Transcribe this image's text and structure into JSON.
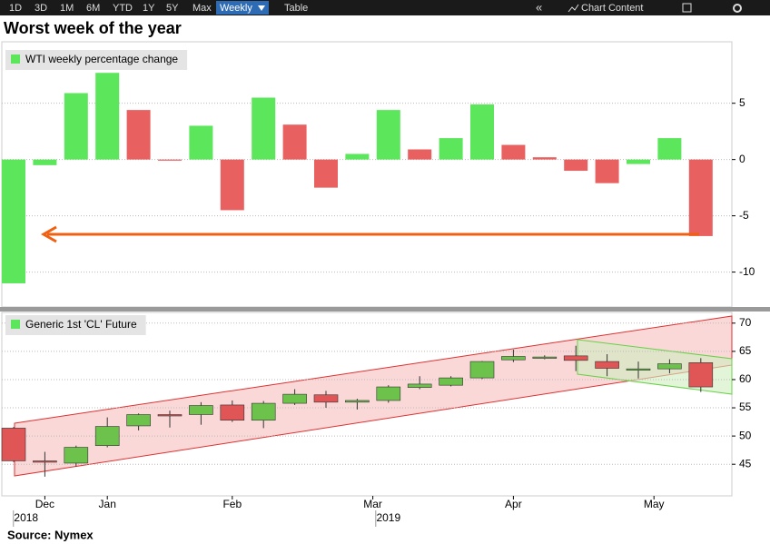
{
  "toolbar": {
    "ranges": [
      "1D",
      "3D",
      "1M",
      "6M",
      "YTD",
      "1Y",
      "5Y",
      "Max"
    ],
    "interval": "Weekly",
    "table": "Table",
    "chart_content": "Chart Content"
  },
  "source": "Source:  Nymex",
  "chart_data": [
    {
      "type": "bar",
      "title": "Worst week of the year",
      "series": [
        {
          "name": "WTI weekly percentage change",
          "color": "#5ce65c",
          "values": [
            -11.0,
            -0.5,
            5.9,
            7.7,
            4.4,
            -0.1,
            3.0,
            -4.5,
            5.5,
            3.1,
            -2.5,
            0.5,
            4.4,
            0.9,
            1.9,
            4.9,
            1.3,
            0.2,
            -1.0,
            -2.1,
            -0.4,
            1.9,
            -6.8
          ],
          "colors": [
            "#5ce65c",
            "#5ce65c",
            "#5ce65c",
            "#5ce65c",
            "#e86060",
            "#e86060",
            "#5ce65c",
            "#e86060",
            "#5ce65c",
            "#e86060",
            "#e86060",
            "#5ce65c",
            "#5ce65c",
            "#e86060",
            "#5ce65c",
            "#5ce65c",
            "#e86060",
            "#e86060",
            "#e86060",
            "#e86060",
            "#5ce65c",
            "#5ce65c",
            "#e86060"
          ]
        }
      ],
      "ylim": [
        -13.1,
        10.3
      ],
      "yticks": [
        -10,
        -5,
        0,
        5
      ],
      "grid": true
    },
    {
      "type": "candlestick",
      "series": [
        {
          "name": "Generic 1st 'CL' Future",
          "color": "#5ce65c",
          "up_color": "#6cc24a",
          "down_color": "#e05555",
          "open": [
            51.4,
            45.6,
            45.2,
            48.3,
            51.8,
            53.8,
            53.8,
            55.5,
            52.8,
            55.8,
            57.3,
            56.0,
            56.3,
            58.6,
            59.0,
            60.3,
            63.5,
            63.8,
            64.2,
            63.2,
            61.7,
            61.9,
            63.0
          ],
          "high": [
            51.6,
            47.2,
            48.3,
            53.3,
            54.0,
            54.5,
            56.0,
            56.3,
            56.2,
            58.3,
            58.0,
            56.6,
            59.0,
            60.6,
            60.6,
            63.3,
            65.3,
            64.3,
            66.0,
            64.5,
            63.2,
            63.6,
            63.8
          ],
          "low": [
            45.4,
            42.8,
            44.6,
            48.0,
            51.0,
            51.5,
            52.0,
            52.5,
            51.4,
            55.5,
            55.0,
            54.7,
            55.9,
            58.3,
            58.8,
            60.1,
            63.1,
            63.6,
            61.5,
            60.6,
            60.2,
            61.1,
            57.8
          ],
          "close": [
            45.6,
            45.5,
            48.0,
            51.7,
            53.8,
            53.7,
            55.4,
            52.8,
            55.8,
            57.4,
            56.0,
            56.3,
            58.7,
            59.2,
            60.3,
            63.2,
            64.1,
            64.0,
            63.4,
            62.0,
            61.9,
            62.8,
            58.7
          ]
        }
      ],
      "ylim": [
        39.4,
        71.9
      ],
      "yticks": [
        45,
        50,
        55,
        60,
        65,
        70
      ],
      "grid": true,
      "xticks": [
        {
          "value": 1,
          "label": "Dec"
        },
        {
          "value": 3,
          "label": "Jan"
        },
        {
          "value": 7,
          "label": "Feb"
        },
        {
          "value": 11.5,
          "label": "Mar"
        },
        {
          "value": 16,
          "label": "Apr"
        },
        {
          "value": 20.5,
          "label": "May"
        }
      ],
      "year_ticks": [
        {
          "value": 0.4,
          "label": "2018"
        },
        {
          "value": 12,
          "label": "2019"
        }
      ]
    }
  ]
}
